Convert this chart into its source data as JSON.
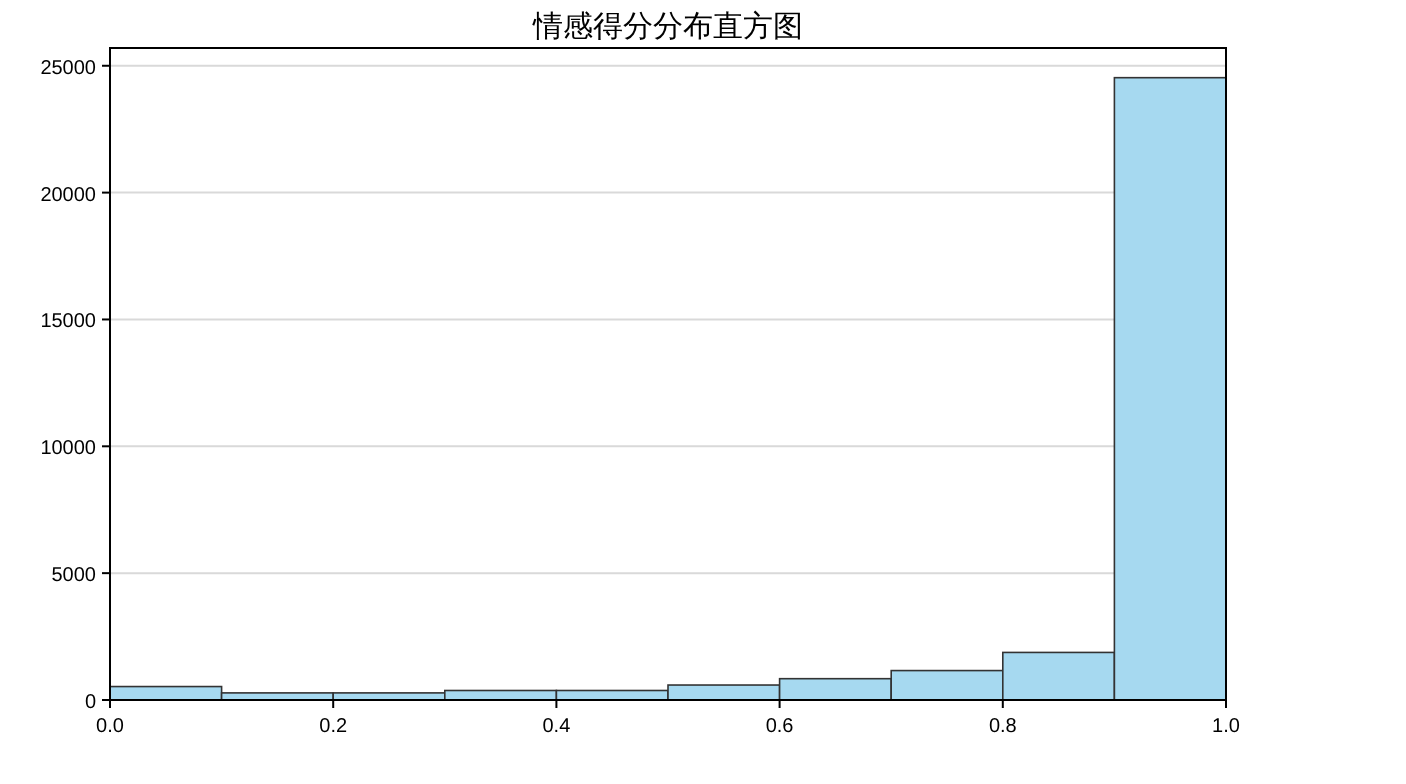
{
  "chart_data": {
    "type": "histogram",
    "title": "情感得分分布直方图",
    "bins": [
      0,
      0.1,
      0.2,
      0.3,
      0.4,
      0.5,
      0.6,
      0.7,
      0.8,
      0.9,
      1.0
    ],
    "values": [
      530,
      280,
      280,
      375,
      375,
      590,
      840,
      1160,
      1875,
      24530
    ],
    "color": "#a6d9f0",
    "xlim": [
      0,
      1
    ],
    "xticks": [
      {
        "value": 0,
        "label": "0.0"
      },
      {
        "value": 0.2,
        "label": "0.2"
      },
      {
        "value": 0.4,
        "label": "0.4"
      },
      {
        "value": 0.6,
        "label": "0.6"
      },
      {
        "value": 0.8,
        "label": "0.8"
      },
      {
        "value": 1,
        "label": "1.0"
      }
    ],
    "ylim": [
      0,
      25700
    ],
    "yticks": [
      0,
      5000,
      10000,
      15000,
      20000,
      25000
    ],
    "grid": "y"
  }
}
